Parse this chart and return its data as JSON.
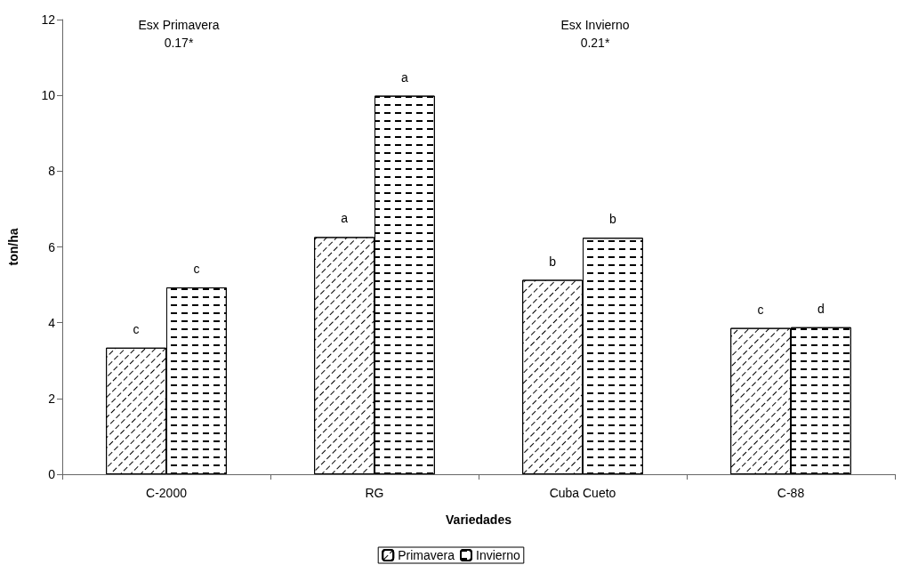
{
  "chart_data": {
    "type": "bar",
    "xlabel": "Variedades",
    "ylabel": "ton/ha",
    "categories": [
      "C-2000",
      "RG",
      "Cuba Cueto",
      "C-88"
    ],
    "series": [
      {
        "name": "Primavera",
        "color": "#ffffff",
        "values": [
          3.34,
          6.26,
          5.13,
          3.86
        ],
        "value_labels": [
          "c",
          "a",
          "b",
          "c"
        ]
      },
      {
        "name": "Invierno",
        "color": "#ffffff",
        "values": [
          4.93,
          9.99,
          6.24,
          3.88
        ],
        "value_labels": [
          "c",
          "a",
          "b",
          "d"
        ]
      }
    ],
    "ylim": [
      0,
      12
    ],
    "yticks": [
      0,
      2,
      4,
      6,
      8,
      10,
      12
    ],
    "grid": false,
    "legend": "bottom",
    "annotations": [
      "Esx Primavera\n0.17*",
      "Esx Invierno\n0.21*"
    ]
  }
}
